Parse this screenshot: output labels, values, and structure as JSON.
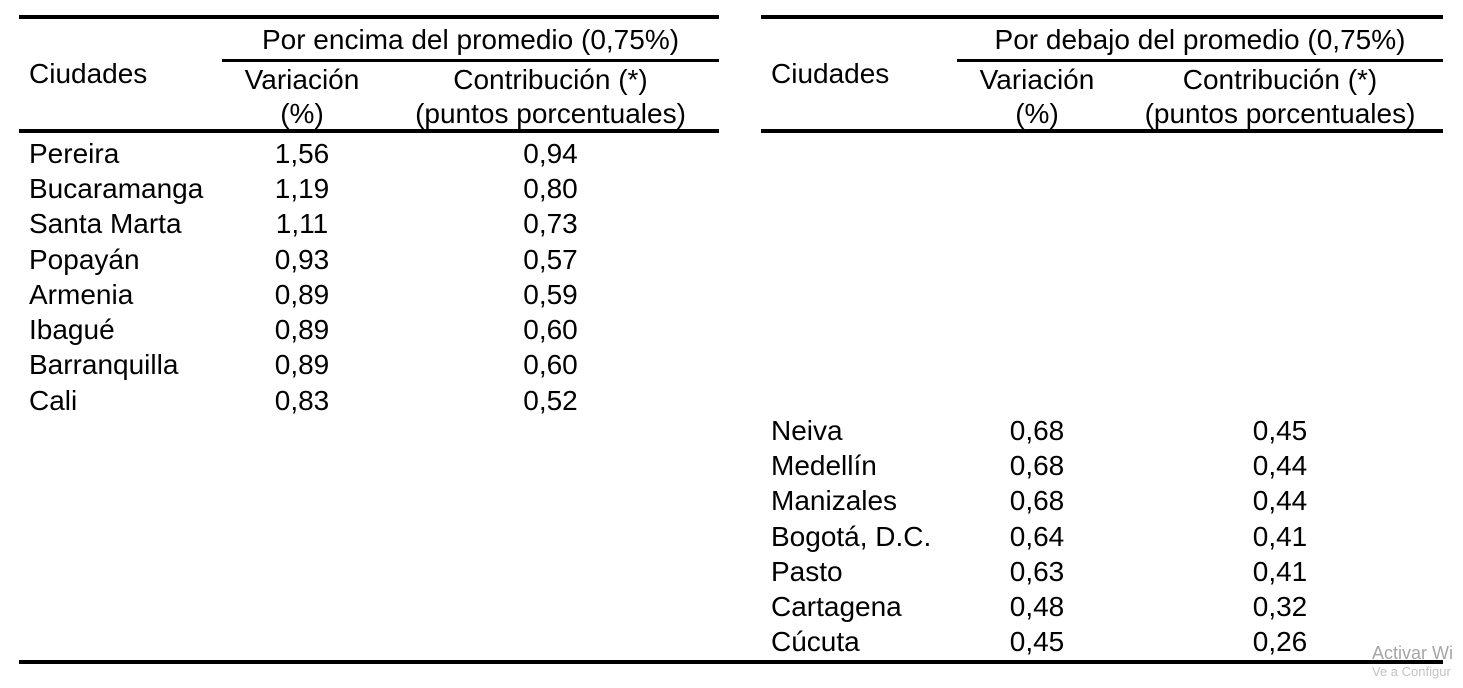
{
  "page": {
    "background_color": "#ffffff",
    "text_color": "#000000",
    "rule_color": "#000000"
  },
  "tables": {
    "left": {
      "group_header": "Por encima del promedio (0,75%)",
      "columns": {
        "city": "Ciudades",
        "variation_line1": "Variación",
        "variation_line2": "(%)",
        "contribution_line1": "Contribución (*)",
        "contribution_line2": "(puntos porcentuales)"
      },
      "rows": [
        {
          "city": "Pereira",
          "variation": "1,56",
          "contribution": "0,94"
        },
        {
          "city": "Bucaramanga",
          "variation": "1,19",
          "contribution": "0,80"
        },
        {
          "city": "Santa Marta",
          "variation": "1,11",
          "contribution": "0,73"
        },
        {
          "city": "Popayán",
          "variation": "0,93",
          "contribution": "0,57"
        },
        {
          "city": "Armenia",
          "variation": "0,89",
          "contribution": "0,59"
        },
        {
          "city": "Ibagué",
          "variation": "0,89",
          "contribution": "0,60"
        },
        {
          "city": "Barranquilla",
          "variation": "0,89",
          "contribution": "0,60"
        },
        {
          "city": "Cali",
          "variation": "0,83",
          "contribution": "0,52"
        }
      ]
    },
    "right": {
      "group_header": "Por debajo del promedio (0,75%)",
      "columns": {
        "city": "Ciudades",
        "variation_line1": "Variación",
        "variation_line2": "(%)",
        "contribution_line1": "Contribución (*)",
        "contribution_line2": "(puntos porcentuales)"
      },
      "rows": [
        {
          "city": "Neiva",
          "variation": "0,68",
          "contribution": "0,45"
        },
        {
          "city": "Medellín",
          "variation": "0,68",
          "contribution": "0,44"
        },
        {
          "city": "Manizales",
          "variation": "0,68",
          "contribution": "0,44"
        },
        {
          "city": "Bogotá, D.C.",
          "variation": "0,64",
          "contribution": "0,41"
        },
        {
          "city": "Pasto",
          "variation": "0,63",
          "contribution": "0,41"
        },
        {
          "city": "Cartagena",
          "variation": "0,48",
          "contribution": "0,32"
        },
        {
          "city": "Cúcuta",
          "variation": "0,45",
          "contribution": "0,26"
        }
      ]
    }
  },
  "watermark": {
    "line1": "Activar Wi",
    "line2": "Ve a Configur",
    "line1_color": "#a6a6a6",
    "line2_color": "#c3c3c3"
  }
}
